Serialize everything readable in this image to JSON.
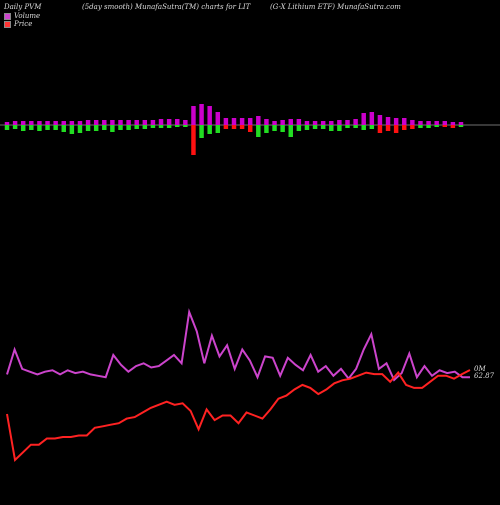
{
  "header": {
    "left": "Daily PVM",
    "center": "(5day smooth) MunafaSutra(TM) charts for LIT",
    "right": "(G-X Lithium ETF) MunafaSutra.com"
  },
  "legend": {
    "volume_label": "Volume",
    "price_label": "Price",
    "volume_color": "#cc44cc",
    "price_color": "#ff3333"
  },
  "colors": {
    "background": "#000000",
    "bar_positive": "#cc00cc",
    "bar_negative_green": "#22dd22",
    "bar_negative_red": "#ff1111",
    "volume_line": "#cc44cc",
    "price_line": "#ff2222",
    "baseline": "#dddddd"
  },
  "end_labels": {
    "volume": "0M",
    "price": "62.87"
  },
  "chart_data": [
    {
      "type": "bar",
      "name": "PVM bars",
      "bars": [
        {
          "up": 3,
          "down": 5,
          "color": "green"
        },
        {
          "up": 4,
          "down": 4,
          "color": "green"
        },
        {
          "up": 4,
          "down": 6,
          "color": "green"
        },
        {
          "up": 4,
          "down": 5,
          "color": "green"
        },
        {
          "up": 4,
          "down": 6,
          "color": "green"
        },
        {
          "up": 4,
          "down": 5,
          "color": "green"
        },
        {
          "up": 4,
          "down": 5,
          "color": "green"
        },
        {
          "up": 4,
          "down": 7,
          "color": "green"
        },
        {
          "up": 4,
          "down": 9,
          "color": "green"
        },
        {
          "up": 4,
          "down": 8,
          "color": "green"
        },
        {
          "up": 5,
          "down": 6,
          "color": "green"
        },
        {
          "up": 5,
          "down": 6,
          "color": "green"
        },
        {
          "up": 5,
          "down": 5,
          "color": "green"
        },
        {
          "up": 5,
          "down": 7,
          "color": "green"
        },
        {
          "up": 5,
          "down": 5,
          "color": "green"
        },
        {
          "up": 5,
          "down": 5,
          "color": "green"
        },
        {
          "up": 5,
          "down": 4,
          "color": "green"
        },
        {
          "up": 5,
          "down": 4,
          "color": "green"
        },
        {
          "up": 5,
          "down": 3,
          "color": "green"
        },
        {
          "up": 6,
          "down": 3,
          "color": "green"
        },
        {
          "up": 6,
          "down": 3,
          "color": "green"
        },
        {
          "up": 6,
          "down": 2,
          "color": "green"
        },
        {
          "up": 5,
          "down": 2,
          "color": "green"
        },
        {
          "up": 19,
          "down": 30,
          "color": "red"
        },
        {
          "up": 21,
          "down": 13,
          "color": "green"
        },
        {
          "up": 19,
          "down": 9,
          "color": "green"
        },
        {
          "up": 13,
          "down": 8,
          "color": "green"
        },
        {
          "up": 7,
          "down": 4,
          "color": "red"
        },
        {
          "up": 7,
          "down": 4,
          "color": "red"
        },
        {
          "up": 7,
          "down": 4,
          "color": "red"
        },
        {
          "up": 7,
          "down": 7,
          "color": "red"
        },
        {
          "up": 9,
          "down": 12,
          "color": "green"
        },
        {
          "up": 6,
          "down": 8,
          "color": "green"
        },
        {
          "up": 4,
          "down": 6,
          "color": "green"
        },
        {
          "up": 5,
          "down": 7,
          "color": "green"
        },
        {
          "up": 6,
          "down": 12,
          "color": "green"
        },
        {
          "up": 6,
          "down": 6,
          "color": "green"
        },
        {
          "up": 4,
          "down": 5,
          "color": "green"
        },
        {
          "up": 4,
          "down": 4,
          "color": "green"
        },
        {
          "up": 4,
          "down": 4,
          "color": "green"
        },
        {
          "up": 4,
          "down": 6,
          "color": "green"
        },
        {
          "up": 5,
          "down": 6,
          "color": "green"
        },
        {
          "up": 5,
          "down": 3,
          "color": "green"
        },
        {
          "up": 6,
          "down": 3,
          "color": "green"
        },
        {
          "up": 12,
          "down": 5,
          "color": "green"
        },
        {
          "up": 13,
          "down": 4,
          "color": "green"
        },
        {
          "up": 10,
          "down": 8,
          "color": "red"
        },
        {
          "up": 8,
          "down": 6,
          "color": "red"
        },
        {
          "up": 7,
          "down": 8,
          "color": "red"
        },
        {
          "up": 7,
          "down": 5,
          "color": "red"
        },
        {
          "up": 5,
          "down": 4,
          "color": "red"
        },
        {
          "up": 4,
          "down": 3,
          "color": "green"
        },
        {
          "up": 4,
          "down": 3,
          "color": "green"
        },
        {
          "up": 4,
          "down": 2,
          "color": "green"
        },
        {
          "up": 4,
          "down": 2,
          "color": "red"
        },
        {
          "up": 3,
          "down": 3,
          "color": "red"
        },
        {
          "up": 3,
          "down": 2,
          "color": "green"
        }
      ]
    },
    {
      "type": "line",
      "name": "Volume",
      "values": [
        82,
        100,
        86,
        84,
        82,
        84,
        85,
        82,
        85,
        83,
        84,
        82,
        81,
        80,
        96,
        89,
        84,
        88,
        90,
        87,
        88,
        92,
        96,
        90,
        127,
        113,
        90,
        110,
        95,
        103,
        86,
        100,
        92,
        80,
        95,
        94,
        81,
        94,
        89,
        85,
        96,
        84,
        88,
        81,
        86,
        79,
        86,
        100,
        111,
        86,
        90,
        78,
        83,
        97,
        80,
        88,
        81,
        85,
        83,
        84,
        80,
        80
      ]
    },
    {
      "type": "line",
      "name": "Price",
      "values": [
        60,
        57,
        57.5,
        58,
        58,
        58.4,
        58.4,
        58.5,
        58.5,
        58.6,
        58.6,
        59.1,
        59.2,
        59.3,
        59.4,
        59.7,
        59.8,
        60.1,
        60.4,
        60.6,
        60.8,
        60.6,
        60.7,
        60.2,
        59,
        60.3,
        59.6,
        59.9,
        59.9,
        59.4,
        60.1,
        59.9,
        59.7,
        60.3,
        61,
        61.2,
        61.6,
        61.9,
        61.7,
        61.3,
        61.6,
        62,
        62.2,
        62.3,
        62.5,
        62.7,
        62.6,
        62.6,
        62.1,
        62.7,
        61.9,
        61.7,
        61.7,
        62.1,
        62.5,
        62.5,
        62.3,
        62.6,
        62.87
      ]
    }
  ]
}
